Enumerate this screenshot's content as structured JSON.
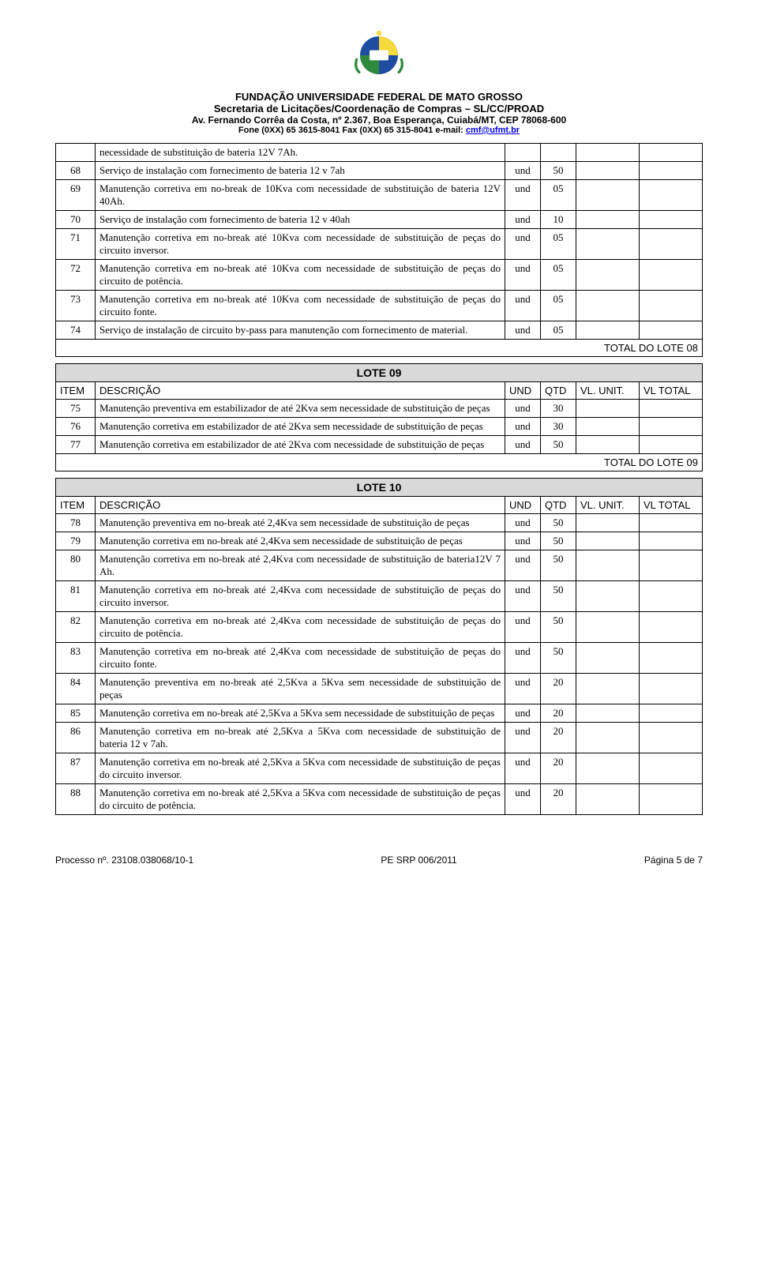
{
  "header": {
    "line1": "FUNDAÇÃO UNIVERSIDADE FEDERAL DE MATO GROSSO",
    "line2": "Secretaria de Licitações/Coordenação de Compras – SL/CC/PROAD",
    "line3": "Av. Fernando Corrêa da Costa, nº 2.367, Boa Esperança, Cuiabá/MT, CEP 78068-600",
    "line4a": "Fone (0XX) 65 3615-8041   Fax (0XX) 65 315-8041  e-mail: ",
    "line4mail": "cmf@ufmt.br"
  },
  "labels": {
    "item": "ITEM",
    "desc": "DESCRIÇÃO",
    "und": "UND",
    "qtd": "QTD",
    "unit": "VL. UNIT.",
    "total": "VL TOTAL",
    "und_val": "und"
  },
  "lote08": {
    "total_label": "TOTAL DO LOTE 08",
    "rows": [
      {
        "n": "",
        "d": "necessidade de substituição de bateria 12V 7Ah.",
        "q": ""
      },
      {
        "n": "68",
        "d": "Serviço de instalação com fornecimento de bateria 12 v 7ah",
        "q": "50"
      },
      {
        "n": "69",
        "d": "Manutenção corretiva em no-break de 10Kva com necessidade de substituição de bateria 12V 40Ah.",
        "q": "05"
      },
      {
        "n": "70",
        "d": "Serviço de instalação com fornecimento de bateria 12 v 40ah",
        "q": "10"
      },
      {
        "n": "71",
        "d": "Manutenção corretiva em no-break até 10Kva com necessidade de substituição de peças do circuito inversor.",
        "q": "05"
      },
      {
        "n": "72",
        "d": "Manutenção corretiva em no-break até 10Kva com necessidade de substituição de peças do circuito de potência.",
        "q": "05"
      },
      {
        "n": "73",
        "d": "Manutenção corretiva em no-break até 10Kva com necessidade de substituição de peças do circuito fonte.",
        "q": "05"
      },
      {
        "n": "74",
        "d": "Serviço de instalação de circuito by-pass para manutenção com fornecimento de material.",
        "q": "05"
      }
    ]
  },
  "lote09": {
    "title": "LOTE 09",
    "total_label": "TOTAL DO LOTE 09",
    "rows": [
      {
        "n": "75",
        "d": "Manutenção preventiva em estabilizador de até 2Kva sem necessidade de substituição de peças",
        "q": "30"
      },
      {
        "n": "76",
        "d": "Manutenção corretiva em estabilizador de até 2Kva sem necessidade de substituição de peças",
        "q": "30"
      },
      {
        "n": "77",
        "d": "Manutenção corretiva em estabilizador de até 2Kva com necessidade de substituição de peças",
        "q": "50"
      }
    ]
  },
  "lote10": {
    "title": "LOTE 10",
    "rows": [
      {
        "n": "78",
        "d": "Manutenção preventiva em no-break até 2,4Kva sem necessidade de substituição de peças",
        "q": "50"
      },
      {
        "n": "79",
        "d": "Manutenção corretiva em no-break até 2,4Kva sem necessidade de substituição de peças",
        "q": "50"
      },
      {
        "n": "80",
        "d": "Manutenção corretiva em no-break até 2,4Kva com necessidade de substituição de bateria12V 7 Ah.",
        "q": "50"
      },
      {
        "n": "81",
        "d": "Manutenção corretiva em no-break até 2,4Kva com necessidade de substituição de peças do circuito inversor.",
        "q": "50"
      },
      {
        "n": "82",
        "d": "Manutenção corretiva em no-break até 2,4Kva com necessidade de substituição de peças do circuito de potência.",
        "q": "50"
      },
      {
        "n": "83",
        "d": "Manutenção corretiva em no-break até 2,4Kva com necessidade de substituição de peças do circuito fonte.",
        "q": "50"
      },
      {
        "n": "84",
        "d": "Manutenção preventiva em no-break até 2,5Kva a 5Kva sem necessidade de substituição de peças",
        "q": "20"
      },
      {
        "n": "85",
        "d": "Manutenção corretiva em no-break até 2,5Kva a 5Kva sem necessidade de substituição de peças",
        "q": "20"
      },
      {
        "n": "86",
        "d": "Manutenção corretiva em no-break até 2,5Kva a 5Kva com necessidade de substituição de bateria 12 v 7ah.",
        "q": "20"
      },
      {
        "n": "87",
        "d": "Manutenção corretiva em no-break até 2,5Kva a 5Kva com necessidade de substituição de peças do circuito inversor.",
        "q": "20"
      },
      {
        "n": "88",
        "d": "Manutenção corretiva em no-break até 2,5Kva a 5Kva com necessidade de substituição de peças do circuito de potência.",
        "q": "20"
      }
    ]
  },
  "footer": {
    "left": "Processo nº. 23108.038068/10-1",
    "center": "PE SRP 006/2011",
    "right": "Página 5 de 7"
  },
  "colors": {
    "lote_bg": "#d9d9d9",
    "border": "#000000",
    "link": "#0000ee"
  }
}
